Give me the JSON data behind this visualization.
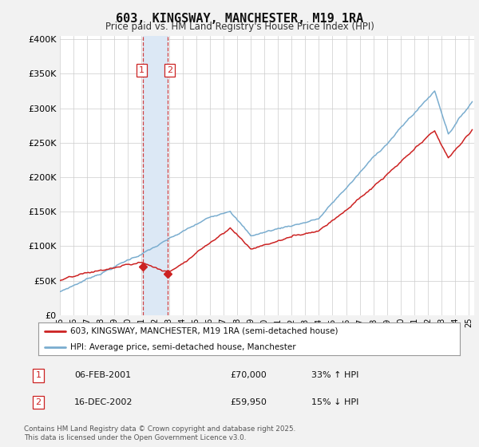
{
  "title": "603, KINGSWAY, MANCHESTER, M19 1RA",
  "subtitle": "Price paid vs. HM Land Registry's House Price Index (HPI)",
  "background_color": "#f2f2f2",
  "plot_bg_color": "#ffffff",
  "sale1_date": "06-FEB-2001",
  "sale1_price": 70000,
  "sale1_pct": "33% ↑ HPI",
  "sale2_date": "16-DEC-2002",
  "sale2_price": 59950,
  "sale2_pct": "15% ↓ HPI",
  "legend1": "603, KINGSWAY, MANCHESTER, M19 1RA (semi-detached house)",
  "legend2": "HPI: Average price, semi-detached house, Manchester",
  "hpi_color": "#7aadcf",
  "price_color": "#cc2222",
  "vline_color": "#cc2222",
  "vfill_color": "#dce8f5",
  "footnote": "Contains HM Land Registry data © Crown copyright and database right 2025.\nThis data is licensed under the Open Government Licence v3.0.",
  "ylim": [
    0,
    400000
  ],
  "sale1_x": 2001.08,
  "sale2_x": 2002.92,
  "seed_hpi": 7,
  "seed_price": 13
}
